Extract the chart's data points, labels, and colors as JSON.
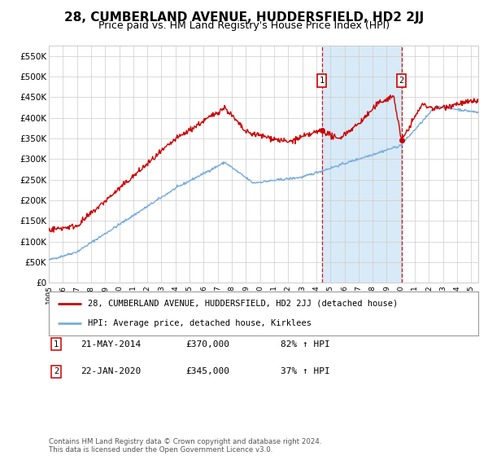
{
  "title": "28, CUMBERLAND AVENUE, HUDDERSFIELD, HD2 2JJ",
  "subtitle": "Price paid vs. HM Land Registry's House Price Index (HPI)",
  "title_fontsize": 11,
  "subtitle_fontsize": 9,
  "xlim_start": 1995.0,
  "xlim_end": 2025.5,
  "ylim": [
    0,
    575000
  ],
  "yticks": [
    0,
    50000,
    100000,
    150000,
    200000,
    250000,
    300000,
    350000,
    400000,
    450000,
    500000,
    550000
  ],
  "ytick_labels": [
    "£0",
    "£50K",
    "£100K",
    "£150K",
    "£200K",
    "£250K",
    "£300K",
    "£350K",
    "£400K",
    "£450K",
    "£500K",
    "£550K"
  ],
  "xticks": [
    1995,
    1996,
    1997,
    1998,
    1999,
    2000,
    2001,
    2002,
    2003,
    2004,
    2005,
    2006,
    2007,
    2008,
    2009,
    2010,
    2011,
    2012,
    2013,
    2014,
    2015,
    2016,
    2017,
    2018,
    2019,
    2020,
    2021,
    2022,
    2023,
    2024,
    2025
  ],
  "property_color": "#cc0000",
  "hpi_color": "#7aaddc",
  "shaded_region_color": "#d8eaf7",
  "sale1_x": 2014.388,
  "sale1_y": 370000,
  "sale2_x": 2020.055,
  "sale2_y": 345000,
  "legend_property": "28, CUMBERLAND AVENUE, HUDDERSFIELD, HD2 2JJ (detached house)",
  "legend_hpi": "HPI: Average price, detached house, Kirklees",
  "sale1_date": "21-MAY-2014",
  "sale1_price": "£370,000",
  "sale1_hpi": "82% ↑ HPI",
  "sale2_date": "22-JAN-2020",
  "sale2_price": "£345,000",
  "sale2_hpi": "37% ↑ HPI",
  "footer": "Contains HM Land Registry data © Crown copyright and database right 2024.\nThis data is licensed under the Open Government Licence v3.0.",
  "background_color": "#ffffff",
  "grid_color": "#cccccc"
}
